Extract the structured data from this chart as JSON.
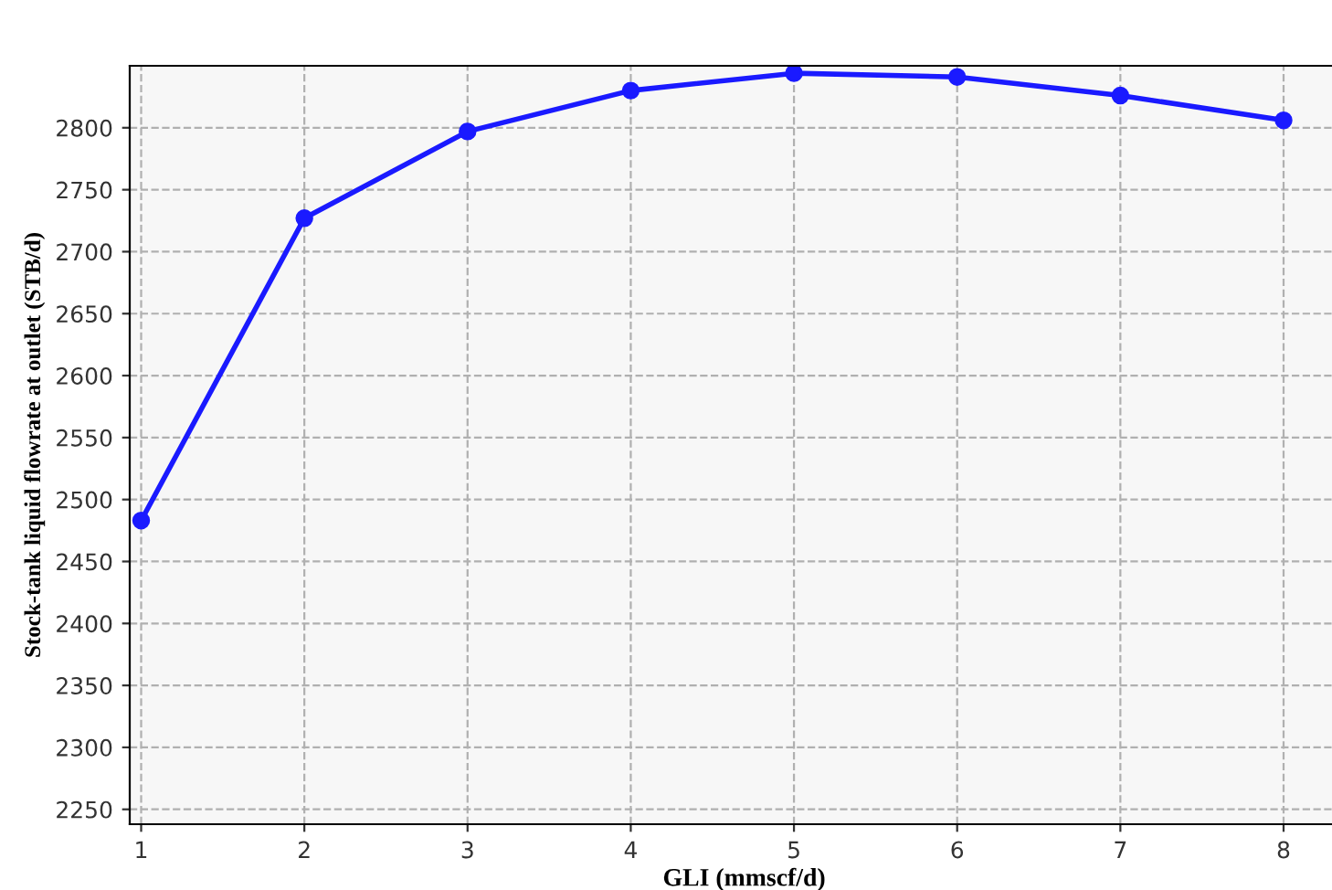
{
  "chart_data": {
    "type": "line",
    "xlabel": "GLI (mmscf/d)",
    "ylabel": "Stock-tank liquid flowrate at outlet (STB/d)",
    "x": [
      1,
      2,
      3,
      4,
      5,
      6,
      7,
      8
    ],
    "series": [
      {
        "color": "#1a1aff",
        "values": [
          2483,
          2727,
          2797,
          2830,
          2844,
          2841,
          2826,
          2806
        ]
      }
    ],
    "xlim": [
      0.93,
      8.46
    ],
    "ylim": [
      2238,
      2850
    ],
    "xticks": [
      1,
      2,
      3,
      4,
      5,
      6,
      7,
      8
    ],
    "yticks": [
      2250,
      2300,
      2350,
      2400,
      2450,
      2500,
      2550,
      2600,
      2650,
      2700,
      2750,
      2800
    ],
    "grid": true,
    "marker": "circle",
    "line_style": "solid"
  }
}
